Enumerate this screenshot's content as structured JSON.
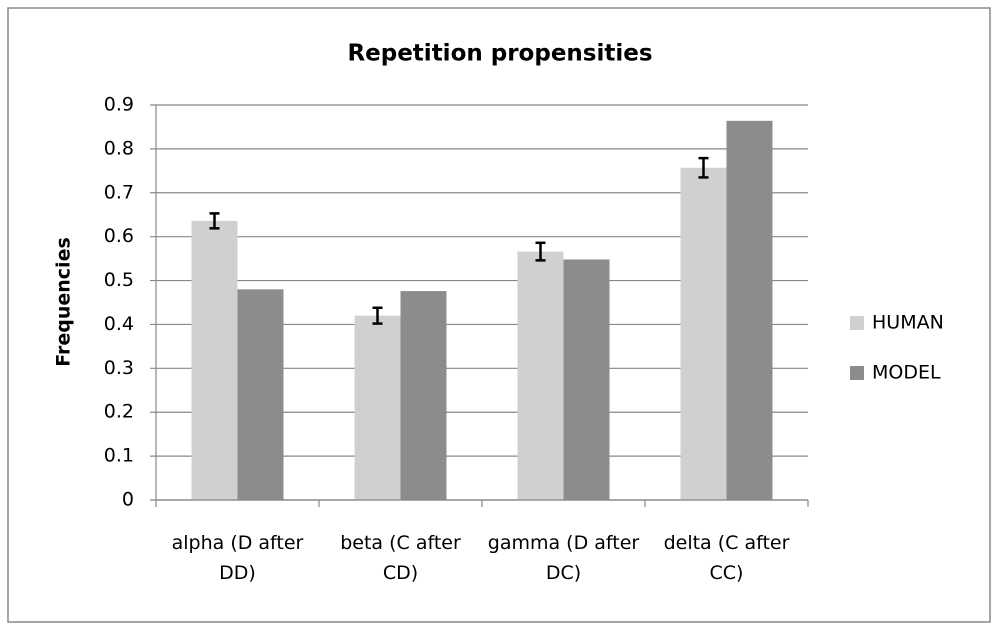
{
  "chart_data": {
    "type": "bar",
    "title": "Repetition propensities",
    "y_label": "Frequencies",
    "categories": [
      "alpha (D after DD)",
      "beta (C after CD)",
      "gamma (D after DC)",
      "delta (C after CC)"
    ],
    "series": [
      {
        "name": "HUMAN",
        "color": "#d0d0d0",
        "values": [
          0.636,
          0.42,
          0.566,
          0.757
        ],
        "errors": [
          0.017,
          0.018,
          0.02,
          0.022
        ]
      },
      {
        "name": "MODEL",
        "color": "#8c8c8c",
        "values": [
          0.48,
          0.476,
          0.548,
          0.864
        ]
      }
    ],
    "ylim": [
      0,
      0.9
    ],
    "yticks": [
      0,
      0.1,
      0.2,
      0.3,
      0.4,
      0.5,
      0.6,
      0.7,
      0.8,
      0.9
    ],
    "grid": true,
    "legend": "right"
  }
}
